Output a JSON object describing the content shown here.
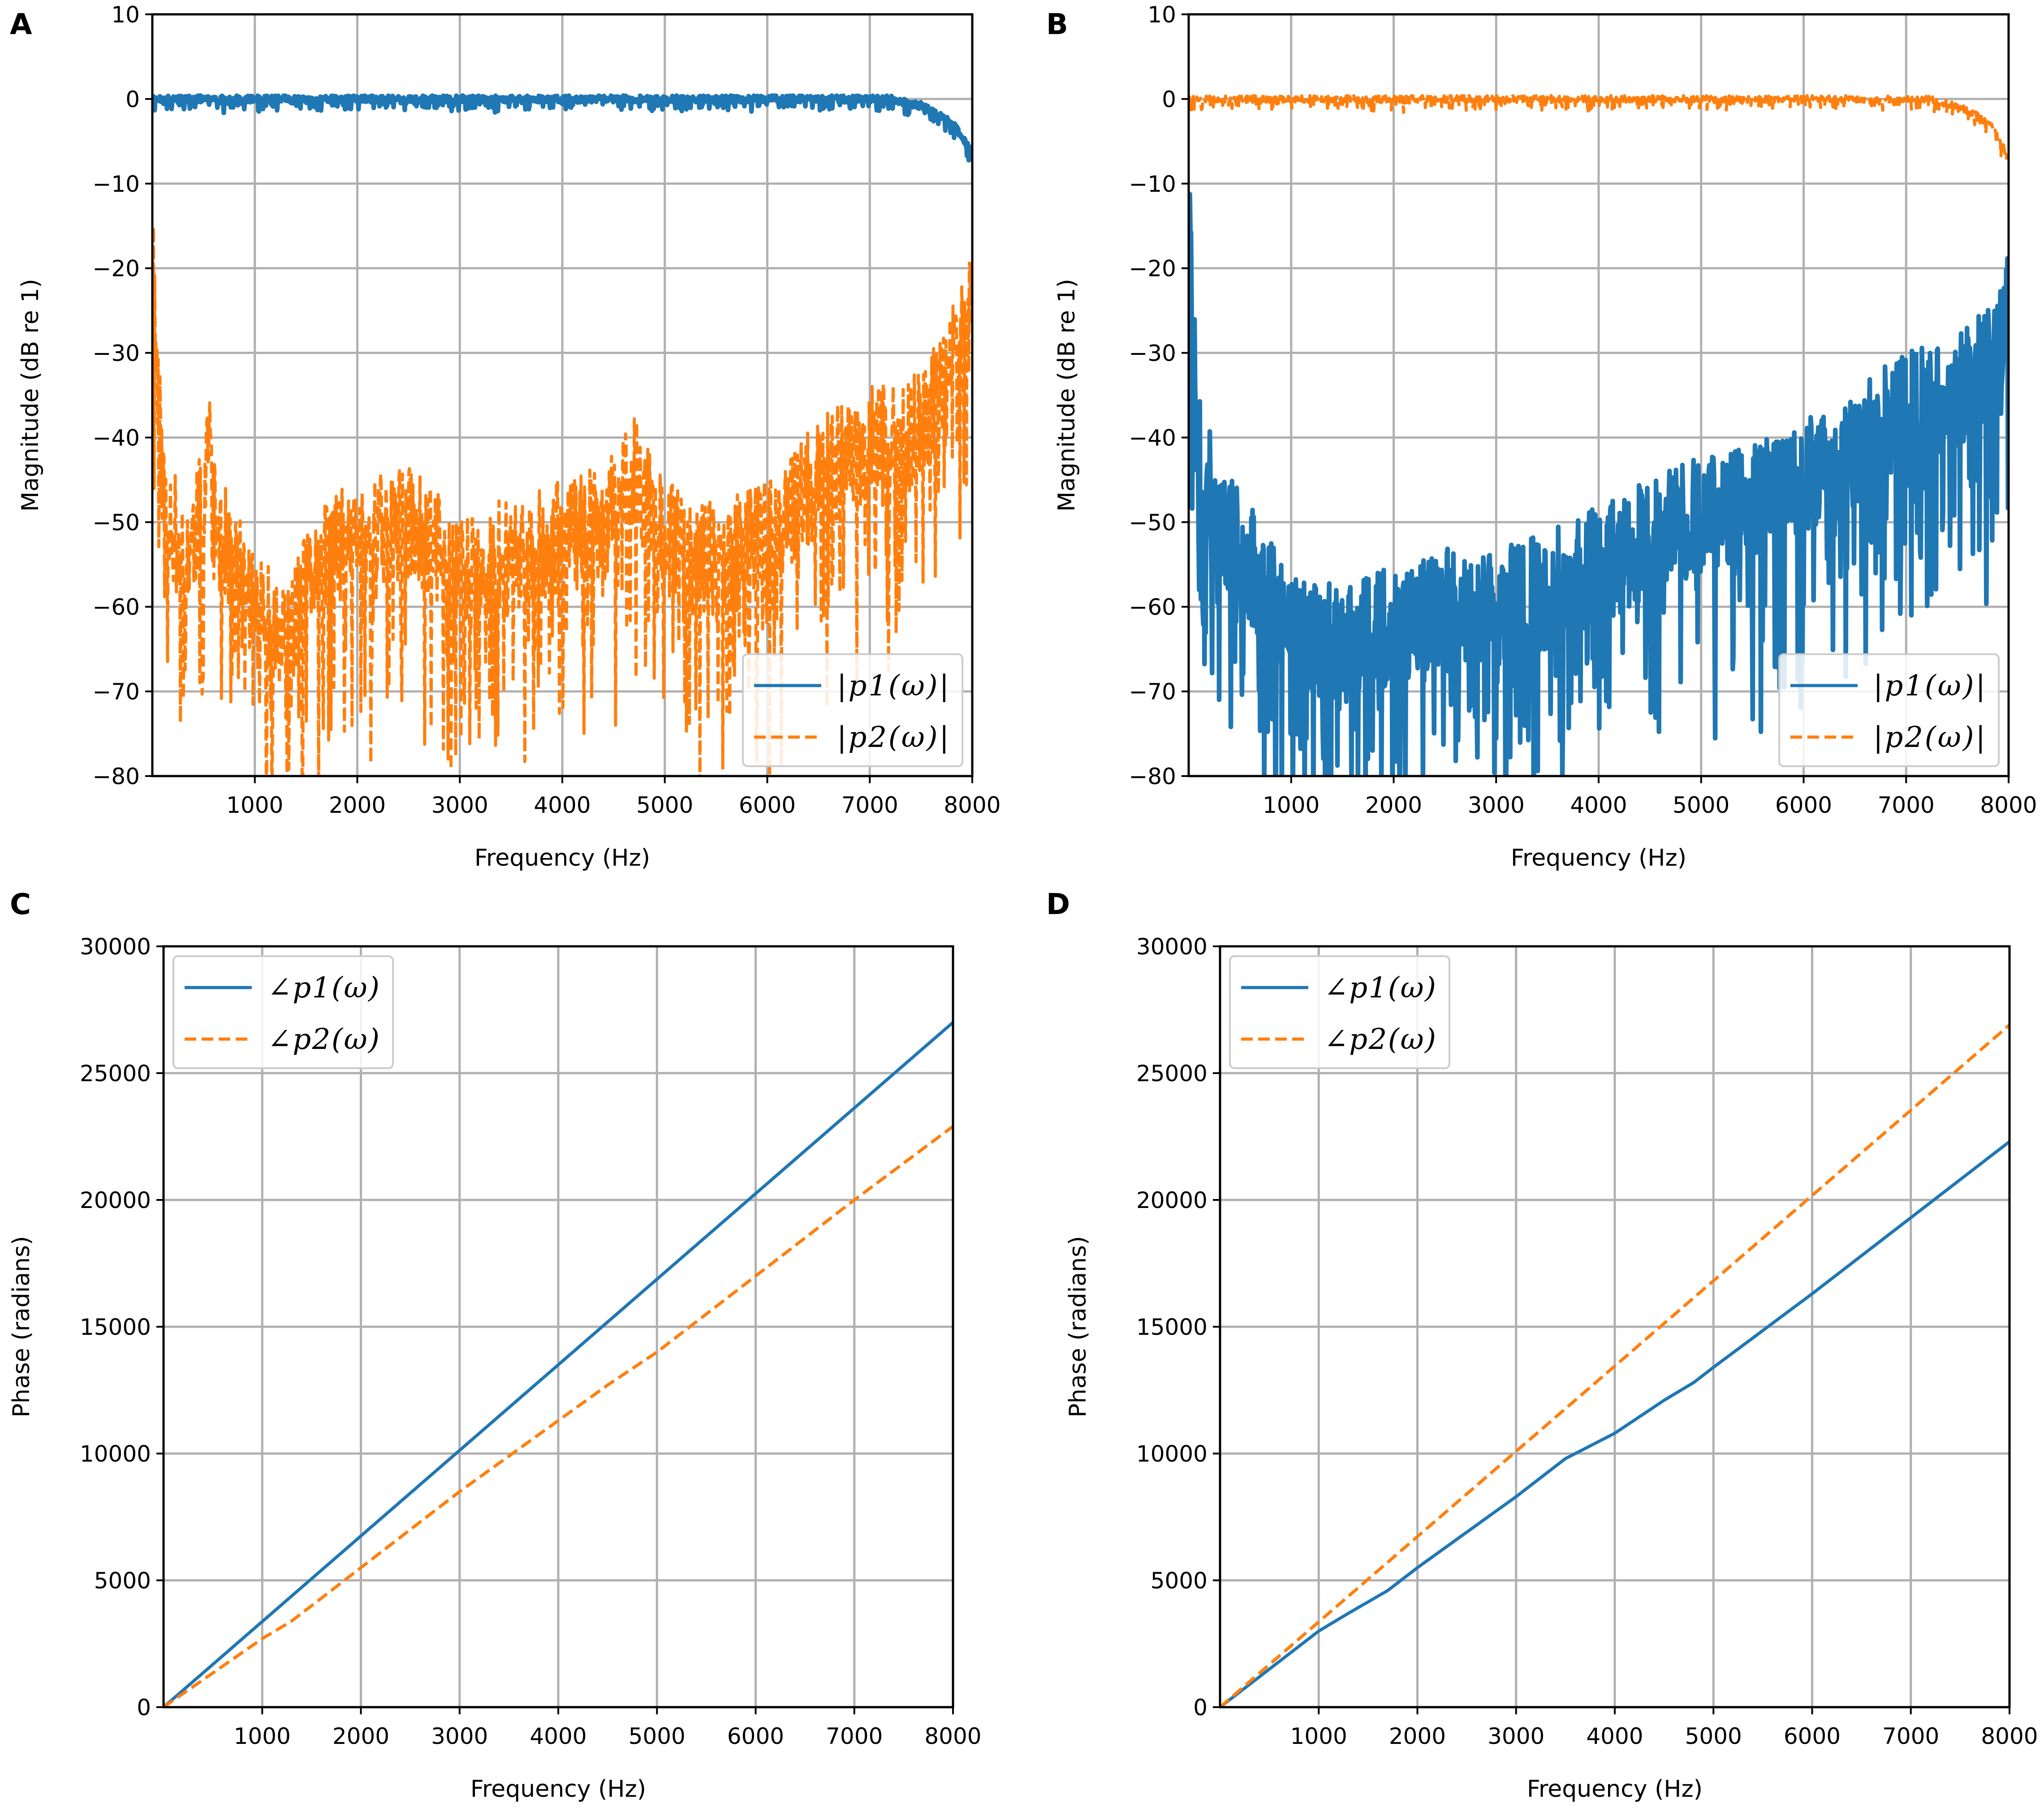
{
  "colors": {
    "series1": "#1f77b4",
    "series2": "#ff7f0e",
    "grid": "#b0b0b0",
    "axes": "#000000"
  },
  "chart_data": [
    {
      "panel": "A",
      "type": "line",
      "xlabel": "Frequency (Hz)",
      "ylabel": "Magnitude (dB re 1)",
      "xlim": [
        0,
        8000
      ],
      "ylim": [
        -80,
        10
      ],
      "xticks": [
        1000,
        2000,
        3000,
        4000,
        5000,
        6000,
        7000,
        8000
      ],
      "yticks": [
        -80,
        -70,
        -60,
        -50,
        -40,
        -30,
        -20,
        -10,
        0,
        10
      ],
      "grid": true,
      "legend": {
        "position": "bottom-right",
        "entries": [
          "|p1(ω)|",
          "|p2(ω)|"
        ]
      },
      "series": [
        {
          "name": "|p1(ω)|",
          "style": "solid",
          "color": "series1",
          "noise": 0.4,
          "seed": 3,
          "thick": 1.5,
          "points": [
            [
              0,
              0
            ],
            [
              7000,
              0
            ],
            [
              7200,
              0
            ],
            [
              7500,
              -0.8
            ],
            [
              7700,
              -2
            ],
            [
              7850,
              -3.5
            ],
            [
              8000,
              -6.5
            ]
          ]
        },
        {
          "name": "|p2(ω)|",
          "style": "dashed",
          "color": "series2",
          "noise": 7,
          "seed": 11,
          "thick": 1,
          "points": [
            [
              0,
              -15
            ],
            [
              30,
              -28
            ],
            [
              100,
              -45
            ],
            [
              300,
              -55
            ],
            [
              500,
              -48
            ],
            [
              550,
              -37
            ],
            [
              600,
              -50
            ],
            [
              1000,
              -60
            ],
            [
              1300,
              -65
            ],
            [
              1600,
              -55
            ],
            [
              2000,
              -52
            ],
            [
              2500,
              -50
            ],
            [
              3000,
              -56
            ],
            [
              3500,
              -54
            ],
            [
              4000,
              -52
            ],
            [
              4500,
              -49
            ],
            [
              4700,
              -44
            ],
            [
              5000,
              -52
            ],
            [
              5500,
              -55
            ],
            [
              6000,
              -52
            ],
            [
              6300,
              -48
            ],
            [
              6600,
              -43
            ],
            [
              7000,
              -41
            ],
            [
              7400,
              -40
            ],
            [
              7700,
              -35
            ],
            [
              8000,
              -25
            ]
          ]
        }
      ]
    },
    {
      "panel": "B",
      "type": "line",
      "xlabel": "Frequency (Hz)",
      "ylabel": "Magnitude (dB re 1)",
      "xlim": [
        0,
        8000
      ],
      "ylim": [
        -80,
        10
      ],
      "xticks": [
        1000,
        2000,
        3000,
        4000,
        5000,
        6000,
        7000,
        8000
      ],
      "yticks": [
        -80,
        -70,
        -60,
        -50,
        -40,
        -30,
        -20,
        -10,
        0,
        10
      ],
      "grid": true,
      "legend": {
        "position": "bottom-right",
        "entries": [
          "|p1(ω)|",
          "|p2(ω)|"
        ]
      },
      "series": [
        {
          "name": "|p1(ω)|",
          "style": "solid",
          "color": "series1",
          "noise": 7,
          "seed": 23,
          "thick": 1.5,
          "points": [
            [
              0,
              -10
            ],
            [
              30,
              -25
            ],
            [
              100,
              -42
            ],
            [
              300,
              -50
            ],
            [
              600,
              -55
            ],
            [
              1000,
              -62
            ],
            [
              1500,
              -65
            ],
            [
              2000,
              -62
            ],
            [
              2500,
              -60
            ],
            [
              3000,
              -60
            ],
            [
              3500,
              -58
            ],
            [
              4000,
              -55
            ],
            [
              4500,
              -52
            ],
            [
              5000,
              -49
            ],
            [
              5500,
              -47
            ],
            [
              6000,
              -45
            ],
            [
              6500,
              -42
            ],
            [
              6800,
              -38
            ],
            [
              7000,
              -37
            ],
            [
              7500,
              -35
            ],
            [
              7800,
              -31
            ],
            [
              8000,
              -25
            ]
          ]
        },
        {
          "name": "|p2(ω)|",
          "style": "dashed",
          "color": "series2",
          "noise": 0.4,
          "seed": 5,
          "thick": 1,
          "points": [
            [
              0,
              0
            ],
            [
              7000,
              0
            ],
            [
              7200,
              0
            ],
            [
              7500,
              -0.8
            ],
            [
              7700,
              -2
            ],
            [
              7850,
              -3.5
            ],
            [
              8000,
              -7
            ]
          ]
        }
      ]
    },
    {
      "panel": "C",
      "type": "line",
      "xlabel": "Frequency (Hz)",
      "ylabel": "Phase (radians)",
      "xlim": [
        0,
        8000
      ],
      "ylim": [
        0,
        30000
      ],
      "xticks": [
        1000,
        2000,
        3000,
        4000,
        5000,
        6000,
        7000,
        8000
      ],
      "yticks": [
        0,
        5000,
        10000,
        15000,
        20000,
        25000,
        30000
      ],
      "grid": true,
      "legend": {
        "position": "top-left",
        "entries": [
          "∠p1(ω)",
          "∠p2(ω)"
        ]
      },
      "series": [
        {
          "name": "∠p1(ω)",
          "style": "solid",
          "color": "series1",
          "noise": 0,
          "seed": 1,
          "thick": 1,
          "points": [
            [
              0,
              0
            ],
            [
              8000,
              27000
            ]
          ]
        },
        {
          "name": "∠p2(ω)",
          "style": "dashed",
          "color": "series2",
          "noise": 0,
          "seed": 2,
          "thick": 1,
          "points": [
            [
              0,
              0
            ],
            [
              1000,
              2700
            ],
            [
              1300,
              3400
            ],
            [
              2000,
              5500
            ],
            [
              3000,
              8500
            ],
            [
              4000,
              11300
            ],
            [
              4500,
              12700
            ],
            [
              5000,
              14000
            ],
            [
              6000,
              17000
            ],
            [
              7000,
              20000
            ],
            [
              8000,
              22900
            ]
          ]
        }
      ]
    },
    {
      "panel": "D",
      "type": "line",
      "xlabel": "Frequency (Hz)",
      "ylabel": "Phase (radians)",
      "xlim": [
        0,
        8000
      ],
      "ylim": [
        0,
        30000
      ],
      "xticks": [
        1000,
        2000,
        3000,
        4000,
        5000,
        6000,
        7000,
        8000
      ],
      "yticks": [
        0,
        5000,
        10000,
        15000,
        20000,
        25000,
        30000
      ],
      "grid": true,
      "legend": {
        "position": "top-left",
        "entries": [
          "∠p1(ω)",
          "∠p2(ω)"
        ]
      },
      "series": [
        {
          "name": "∠p1(ω)",
          "style": "solid",
          "color": "series1",
          "noise": 0,
          "seed": 1,
          "thick": 1,
          "points": [
            [
              0,
              0
            ],
            [
              1000,
              3000
            ],
            [
              1300,
              3700
            ],
            [
              1700,
              4600
            ],
            [
              2000,
              5500
            ],
            [
              2500,
              6900
            ],
            [
              3000,
              8300
            ],
            [
              3500,
              9800
            ],
            [
              4000,
              10800
            ],
            [
              4500,
              12100
            ],
            [
              4800,
              12800
            ],
            [
              5000,
              13400
            ],
            [
              6000,
              16300
            ],
            [
              7000,
              19300
            ],
            [
              8000,
              22300
            ]
          ]
        },
        {
          "name": "∠p2(ω)",
          "style": "dashed",
          "color": "series2",
          "noise": 0,
          "seed": 2,
          "thick": 1,
          "points": [
            [
              0,
              0
            ],
            [
              8000,
              26900
            ]
          ]
        }
      ]
    }
  ]
}
